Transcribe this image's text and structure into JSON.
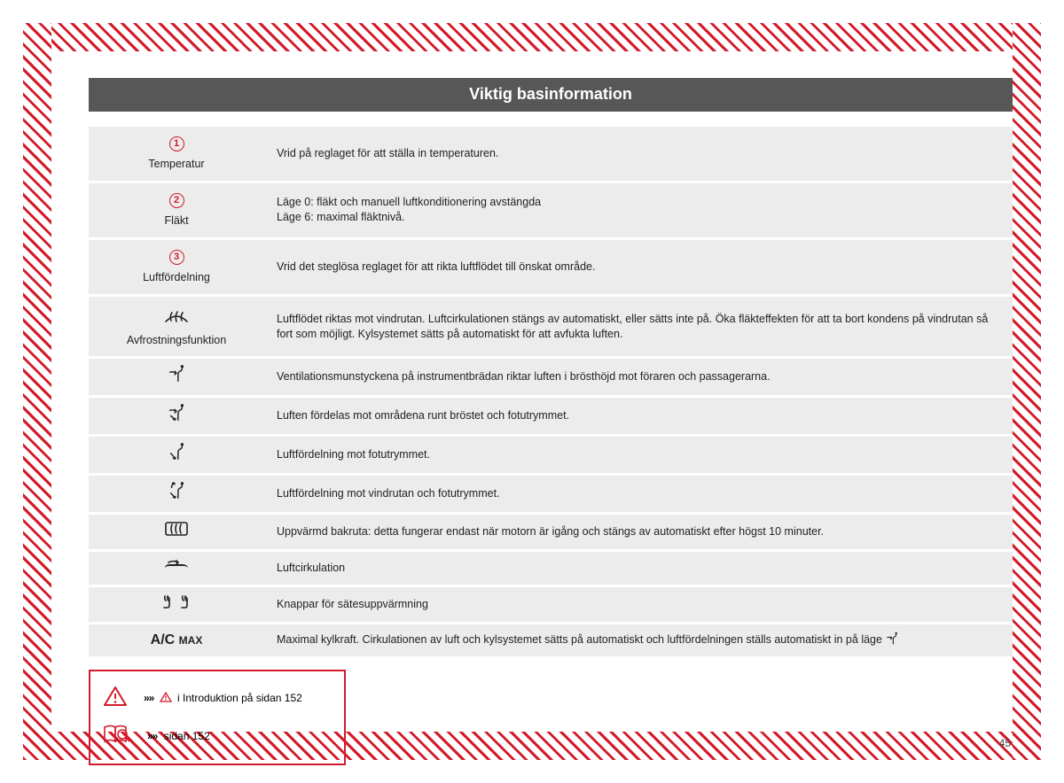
{
  "header": {
    "title": "Viktig basinformation"
  },
  "colors": {
    "accent": "#d31b2a",
    "header_bg": "#575757",
    "row_bg": "#ececec",
    "text": "#222222"
  },
  "table": {
    "rows": [
      {
        "type": "numbered",
        "num": "1",
        "label": "Temperatur",
        "desc": "Vrid på reglaget för att ställa in temperaturen."
      },
      {
        "type": "numbered",
        "num": "2",
        "label": "Fläkt",
        "desc": "Läge 0: fläkt och manuell luftkonditionering avstängda\nLäge 6: maximal fläktnivå."
      },
      {
        "type": "numbered",
        "num": "3",
        "label": "Luftfördelning",
        "desc": "Vrid det steglösa reglaget för att rikta luftflödet till önskat område."
      },
      {
        "type": "icon",
        "icon": "defrost",
        "label": "Avfrostningsfunktion",
        "desc": "Luftflödet riktas mot vindrutan. Luftcirkulationen stängs av automatiskt, eller sätts inte på. Öka fläkteffekten för att ta bort kondens på vindrutan så fort som möjligt. Kylsystemet sätts på automatiskt för att avfukta luften."
      },
      {
        "type": "icon",
        "icon": "air-chest",
        "desc": "Ventilationsmunstyckena på instrumentbrädan riktar luften i brösthöjd mot föraren och passagerarna."
      },
      {
        "type": "icon",
        "icon": "air-chest-foot",
        "desc": "Luften fördelas mot områdena runt bröstet och fotutrymmet."
      },
      {
        "type": "icon",
        "icon": "air-foot",
        "desc": "Luftfördelning mot fotutrymmet."
      },
      {
        "type": "icon",
        "icon": "air-wind-foot",
        "desc": "Luftfördelning mot vindrutan och fotutrymmet."
      },
      {
        "type": "icon",
        "icon": "rear-defrost",
        "desc": "Uppvärmd bakruta: detta fungerar endast när motorn är igång och stängs av automatiskt efter högst 10 minuter."
      },
      {
        "type": "icon",
        "icon": "recirculate",
        "desc": "Luftcirkulation"
      },
      {
        "type": "icon",
        "icon": "seat-heat",
        "desc": "Knappar för sätesuppvärmning"
      },
      {
        "type": "text-icon",
        "text_main": "A/C",
        "text_sub": "MAX",
        "desc": "Maximal kylkraft. Cirkulationen av luft och kylsystemet sätts på automatiskt och luftfördelningen ställs automatiskt in på läge ",
        "desc_trail_icon": "air-chest"
      }
    ]
  },
  "refbox": {
    "row1_text": "i Introduktion på sidan 152",
    "row2_text": "sidan 152",
    "chevrons": "»»"
  },
  "page_number": "45"
}
